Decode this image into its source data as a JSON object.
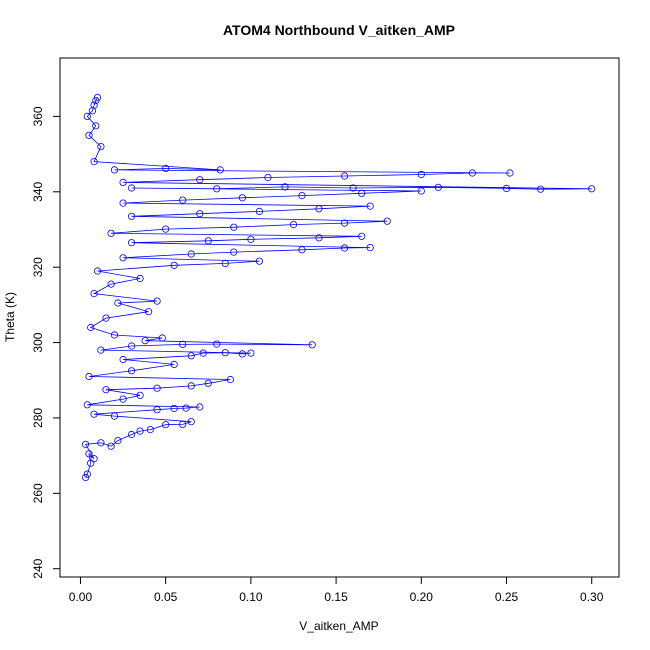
{
  "chart_data": {
    "type": "scatter",
    "title": "ATOM4 Northbound V_aitken_AMP",
    "xlabel": "V_aitken_AMP",
    "ylabel": "Theta (K)",
    "xlim": [
      -0.012,
      0.316
    ],
    "ylim": [
      237.8,
      375.5
    ],
    "x_ticks": [
      0.0,
      0.05,
      0.1,
      0.15,
      0.2,
      0.25,
      0.3
    ],
    "x_tick_labels": [
      "0.00",
      "0.05",
      "0.10",
      "0.15",
      "0.20",
      "0.25",
      "0.30"
    ],
    "y_ticks": [
      240,
      260,
      280,
      300,
      320,
      340,
      360
    ],
    "y_tick_labels": [
      "240",
      "260",
      "280",
      "300",
      "320",
      "340",
      "360"
    ],
    "grid": false,
    "legend": "none",
    "series_color": "#0000ff",
    "marker": "open-circle",
    "connected": true,
    "points": [
      [
        0.003,
        264.2
      ],
      [
        0.004,
        265.1
      ],
      [
        0.006,
        268.0
      ],
      [
        0.005,
        270.5
      ],
      [
        0.008,
        269.2
      ],
      [
        0.003,
        273.0
      ],
      [
        0.012,
        273.4
      ],
      [
        0.018,
        272.5
      ],
      [
        0.022,
        274.0
      ],
      [
        0.03,
        275.6
      ],
      [
        0.035,
        276.5
      ],
      [
        0.041,
        276.9
      ],
      [
        0.05,
        278.2
      ],
      [
        0.06,
        278.3
      ],
      [
        0.065,
        279.0
      ],
      [
        0.02,
        280.5
      ],
      [
        0.008,
        281.0
      ],
      [
        0.045,
        282.2
      ],
      [
        0.055,
        282.5
      ],
      [
        0.062,
        282.6
      ],
      [
        0.07,
        282.9
      ],
      [
        0.004,
        283.5
      ],
      [
        0.025,
        285.0
      ],
      [
        0.035,
        286.0
      ],
      [
        0.015,
        287.5
      ],
      [
        0.045,
        287.9
      ],
      [
        0.065,
        288.5
      ],
      [
        0.075,
        289.2
      ],
      [
        0.088,
        290.2
      ],
      [
        0.005,
        291.0
      ],
      [
        0.03,
        292.5
      ],
      [
        0.055,
        294.2
      ],
      [
        0.025,
        295.5
      ],
      [
        0.065,
        296.5
      ],
      [
        0.072,
        297.2
      ],
      [
        0.085,
        297.3
      ],
      [
        0.095,
        297.0
      ],
      [
        0.1,
        297.2
      ],
      [
        0.012,
        298.0
      ],
      [
        0.03,
        299.1
      ],
      [
        0.06,
        299.5
      ],
      [
        0.08,
        299.6
      ],
      [
        0.136,
        299.4
      ],
      [
        0.038,
        300.5
      ],
      [
        0.048,
        301.2
      ],
      [
        0.02,
        302.0
      ],
      [
        0.006,
        304.0
      ],
      [
        0.015,
        306.5
      ],
      [
        0.04,
        308.2
      ],
      [
        0.022,
        310.5
      ],
      [
        0.045,
        311.0
      ],
      [
        0.008,
        313.0
      ],
      [
        0.018,
        315.5
      ],
      [
        0.035,
        317.0
      ],
      [
        0.01,
        319.0
      ],
      [
        0.055,
        320.5
      ],
      [
        0.085,
        321.0
      ],
      [
        0.105,
        321.6
      ],
      [
        0.025,
        322.5
      ],
      [
        0.065,
        323.5
      ],
      [
        0.09,
        324.0
      ],
      [
        0.13,
        324.6
      ],
      [
        0.155,
        325.1
      ],
      [
        0.17,
        325.2
      ],
      [
        0.03,
        326.5
      ],
      [
        0.075,
        327.0
      ],
      [
        0.1,
        327.4
      ],
      [
        0.14,
        327.8
      ],
      [
        0.165,
        328.2
      ],
      [
        0.018,
        329.0
      ],
      [
        0.05,
        330.1
      ],
      [
        0.09,
        330.6
      ],
      [
        0.125,
        331.3
      ],
      [
        0.155,
        331.7
      ],
      [
        0.18,
        332.2
      ],
      [
        0.03,
        333.5
      ],
      [
        0.07,
        334.2
      ],
      [
        0.105,
        334.8
      ],
      [
        0.14,
        335.5
      ],
      [
        0.17,
        336.2
      ],
      [
        0.025,
        337.0
      ],
      [
        0.06,
        337.8
      ],
      [
        0.095,
        338.4
      ],
      [
        0.13,
        339.0
      ],
      [
        0.165,
        339.6
      ],
      [
        0.2,
        340.2
      ],
      [
        0.03,
        341.0
      ],
      [
        0.08,
        340.8
      ],
      [
        0.12,
        341.3
      ],
      [
        0.16,
        341.0
      ],
      [
        0.21,
        341.2
      ],
      [
        0.25,
        340.9
      ],
      [
        0.27,
        340.7
      ],
      [
        0.3,
        340.8
      ],
      [
        0.025,
        342.5
      ],
      [
        0.07,
        343.2
      ],
      [
        0.11,
        343.8
      ],
      [
        0.155,
        344.2
      ],
      [
        0.2,
        344.6
      ],
      [
        0.23,
        345.0
      ],
      [
        0.252,
        345.0
      ],
      [
        0.02,
        345.8
      ],
      [
        0.05,
        346.2
      ],
      [
        0.082,
        345.8
      ],
      [
        0.008,
        348.0
      ],
      [
        0.012,
        352.0
      ],
      [
        0.005,
        355.0
      ],
      [
        0.009,
        357.5
      ],
      [
        0.004,
        360.0
      ],
      [
        0.007,
        361.5
      ],
      [
        0.008,
        363.0
      ],
      [
        0.009,
        364.2
      ],
      [
        0.01,
        365.0
      ]
    ]
  }
}
